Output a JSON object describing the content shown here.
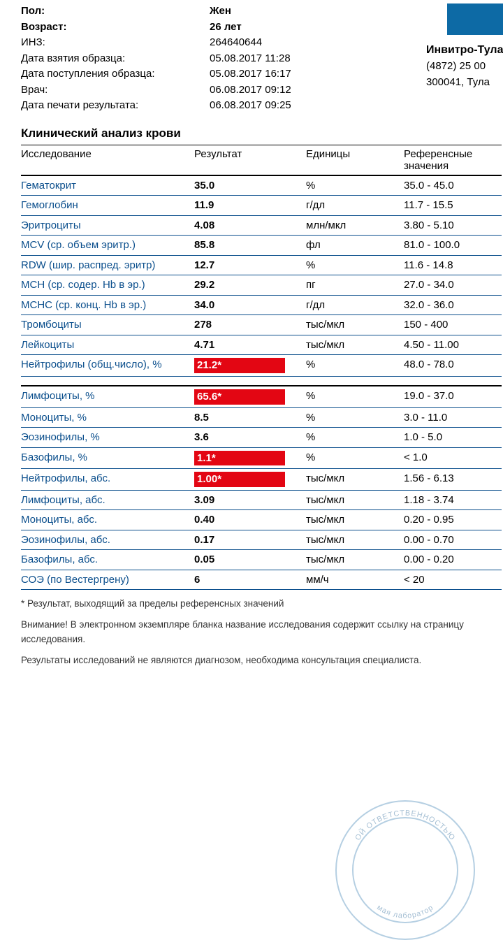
{
  "patient": {
    "sex_label": "Пол:",
    "sex_value": "Жен",
    "age_label": "Возраст:",
    "age_value": "26 лет",
    "inz_label": "ИНЗ:",
    "inz_value": "264640644",
    "sample_date_label": "Дата взятия образца:",
    "sample_date_value": "05.08.2017 11:28",
    "received_date_label": "Дата поступления образца:",
    "received_date_value": "05.08.2017 16:17",
    "doctor_label": "Врач:",
    "doctor_value": "06.08.2017 09:12",
    "print_date_label": "Дата печати результата:",
    "print_date_value": "06.08.2017 09:25"
  },
  "lab": {
    "name": "Инвитро-Тула",
    "phone": "(4872) 25 00",
    "address": "300041, Тула"
  },
  "section_title": "Клинический анализ крови",
  "headers": {
    "test": "Исследование",
    "result": "Результат",
    "units": "Единицы",
    "ref": "Референсные значения"
  },
  "rows1": [
    {
      "name": "Гематокрит",
      "result": "35.0",
      "units": "%",
      "ref": "35.0 - 45.0",
      "hl": false
    },
    {
      "name": "Гемоглобин",
      "result": "11.9",
      "units": "г/дл",
      "ref": "11.7 - 15.5",
      "hl": false
    },
    {
      "name": "Эритроциты",
      "result": "4.08",
      "units": "млн/мкл",
      "ref": "3.80 - 5.10",
      "hl": false
    },
    {
      "name": "MCV (ср. объем эритр.)",
      "result": "85.8",
      "units": "фл",
      "ref": "81.0 - 100.0",
      "hl": false
    },
    {
      "name": "RDW (шир. распред. эритр)",
      "result": "12.7",
      "units": "%",
      "ref": "11.6 - 14.8",
      "hl": false
    },
    {
      "name": "MCH (ср. содер. Hb в эр.)",
      "result": "29.2",
      "units": "пг",
      "ref": "27.0 - 34.0",
      "hl": false
    },
    {
      "name": "MCHC (ср. конц. Hb в эр.)",
      "result": "34.0",
      "units": "г/дл",
      "ref": "32.0 - 36.0",
      "hl": false
    },
    {
      "name": "Тромбоциты",
      "result": "278",
      "units": "тыс/мкл",
      "ref": "150 - 400",
      "hl": false
    },
    {
      "name": "Лейкоциты",
      "result": "4.71",
      "units": "тыс/мкл",
      "ref": "4.50 - 11.00",
      "hl": false
    },
    {
      "name": "Нейтрофилы (общ.число), %",
      "result": "21.2*",
      "units": "%",
      "ref": "48.0 - 78.0",
      "hl": true
    }
  ],
  "rows2": [
    {
      "name": "Лимфоциты, %",
      "result": "65.6*",
      "units": "%",
      "ref": "19.0 - 37.0",
      "hl": true
    },
    {
      "name": "Моноциты, %",
      "result": "8.5",
      "units": "%",
      "ref": "3.0 - 11.0",
      "hl": false
    },
    {
      "name": "Эозинофилы, %",
      "result": "3.6",
      "units": "%",
      "ref": "1.0 - 5.0",
      "hl": false
    },
    {
      "name": "Базофилы, %",
      "result": "1.1*",
      "units": "%",
      "ref": "< 1.0",
      "hl": true
    },
    {
      "name": "Нейтрофилы, абс.",
      "result": "1.00*",
      "units": "тыс/мкл",
      "ref": "1.56 - 6.13",
      "hl": true
    },
    {
      "name": "Лимфоциты, абс.",
      "result": "3.09",
      "units": "тыс/мкл",
      "ref": "1.18 - 3.74",
      "hl": false
    },
    {
      "name": "Моноциты, абс.",
      "result": "0.40",
      "units": "тыс/мкл",
      "ref": "0.20 - 0.95",
      "hl": false
    },
    {
      "name": "Эозинофилы, абс.",
      "result": "0.17",
      "units": "тыс/мкл",
      "ref": "0.00 - 0.70",
      "hl": false
    },
    {
      "name": "Базофилы, абс.",
      "result": "0.05",
      "units": "тыс/мкл",
      "ref": "0.00 - 0.20",
      "hl": false
    },
    {
      "name": "СОЭ (по Вестергрену)",
      "result": "6",
      "units": "мм/ч",
      "ref": "< 20",
      "hl": false
    }
  ],
  "footnotes": {
    "star": "* Результат, выходящий за пределы референсных значений",
    "attention": "Внимание! В электронном экземпляре бланка название исследования содержит ссылку на страницу исследования.",
    "disclaimer": "Результаты исследований не являются диагнозом, необходима консультация специалиста."
  },
  "stamp": {
    "top_text": "ОЙ ОТВЕТСТВЕННОСТЬЮ",
    "bottom_text": "мая лаборатор"
  },
  "colors": {
    "link_blue": "#0a4e8c",
    "highlight_red": "#e30613",
    "logo_blue": "#0d6aa5",
    "stamp_blue": "#7aa8cc"
  }
}
